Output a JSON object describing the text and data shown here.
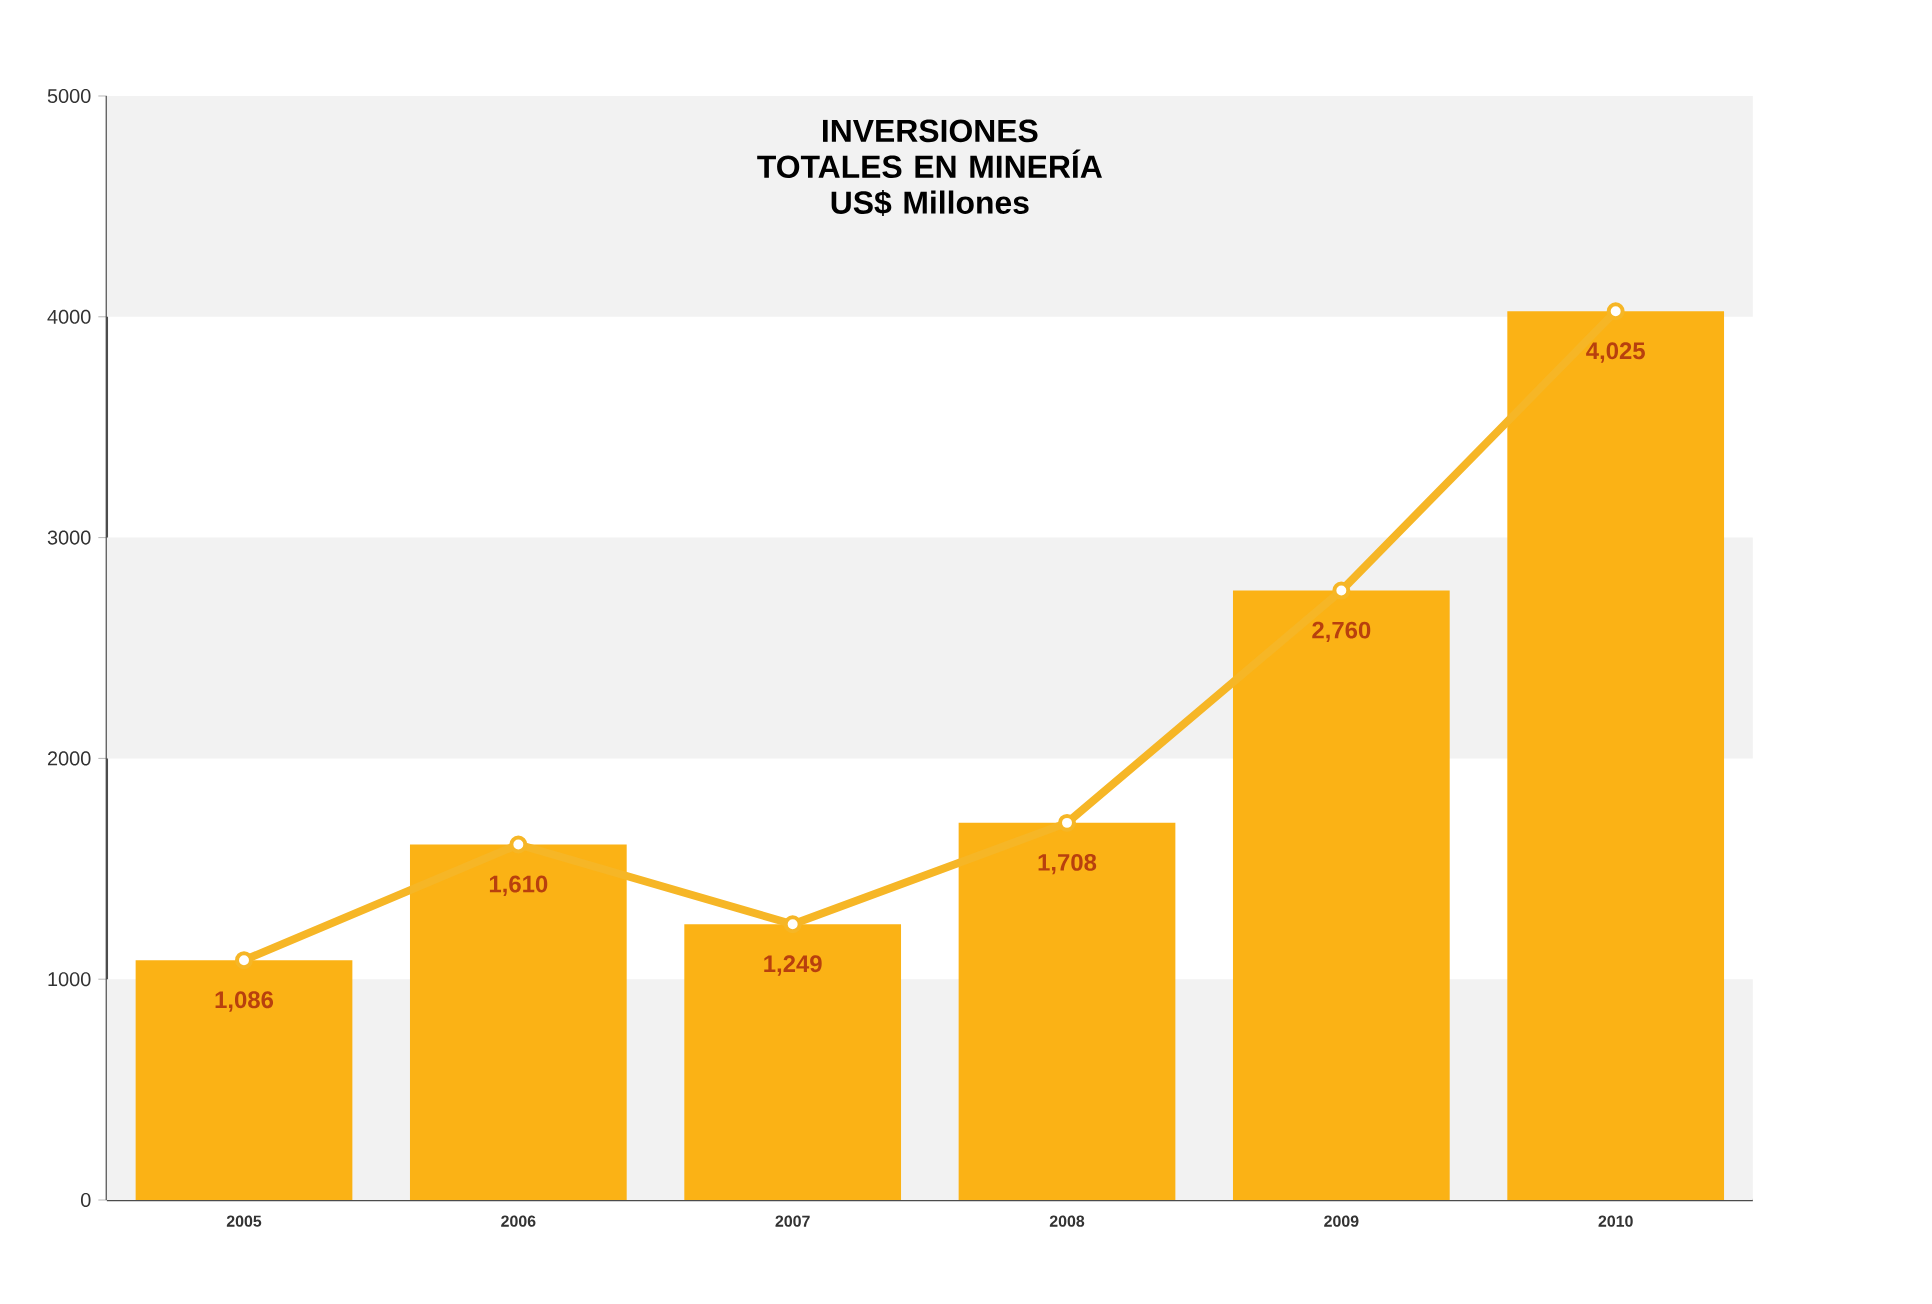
{
  "chart_data": {
    "type": "bar",
    "title": "INVERSIONES TOTALES EN MINERÍA",
    "subtitle": "US$ Millones",
    "categories": [
      "2005",
      "2006",
      "2007",
      "2008",
      "2009",
      "2010"
    ],
    "series": [
      {
        "color": "#fbb215",
        "values": [
          1086,
          1610,
          1249,
          1708,
          2760,
          4025
        ],
        "value_labels": [
          "1,086",
          "1,610",
          "1,249",
          "1,708",
          "2,760",
          "4,025"
        ]
      },
      {
        "type": "line",
        "color": "#f6b626",
        "marker": "circle",
        "values": [
          1086,
          1610,
          1249,
          1708,
          2760,
          4025
        ]
      }
    ],
    "ylim": [
      0,
      5000
    ],
    "yticks": [
      0,
      1000,
      2000,
      3000,
      4000,
      5000
    ],
    "bands": [
      {
        "axis": "y",
        "from": 0,
        "to": 1000,
        "color": "#f2f2f2"
      },
      {
        "axis": "y",
        "from": 2000,
        "to": 3000,
        "color": "#f2f2f2"
      },
      {
        "axis": "y",
        "from": 4000,
        "to": 5000,
        "color": "#f2f2f2"
      }
    ]
  }
}
